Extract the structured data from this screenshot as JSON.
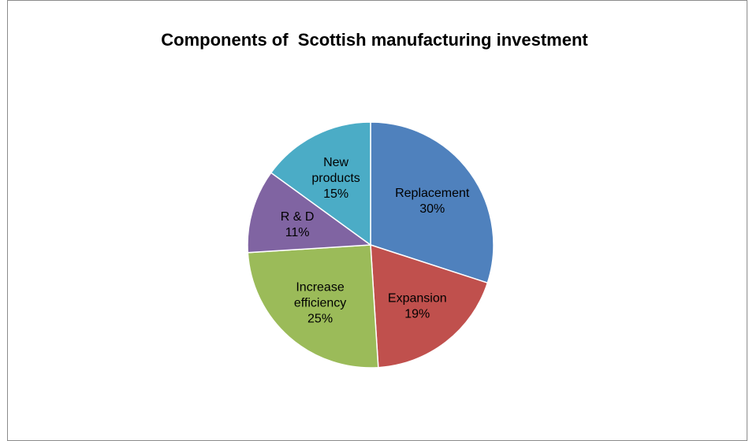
{
  "chart_data": {
    "type": "pie",
    "title": "Components of  Scottish manufacturing investment",
    "start_angle_deg": 0,
    "direction": "clockwise",
    "slices": [
      {
        "label_lines": [
          "Replacement"
        ],
        "percent_label": "30%",
        "value": 30,
        "color": "#4f81bd"
      },
      {
        "label_lines": [
          "Expansion"
        ],
        "percent_label": "19%",
        "value": 19,
        "color": "#c0504d"
      },
      {
        "label_lines": [
          "Increase",
          "efficiency"
        ],
        "percent_label": "25%",
        "value": 25,
        "color": "#9bbb59"
      },
      {
        "label_lines": [
          "R & D"
        ],
        "percent_label": "11%",
        "value": 11,
        "color": "#8064a2"
      },
      {
        "label_lines": [
          "New",
          "products"
        ],
        "percent_label": "15%",
        "value": 15,
        "color": "#4bacc6"
      }
    ]
  }
}
